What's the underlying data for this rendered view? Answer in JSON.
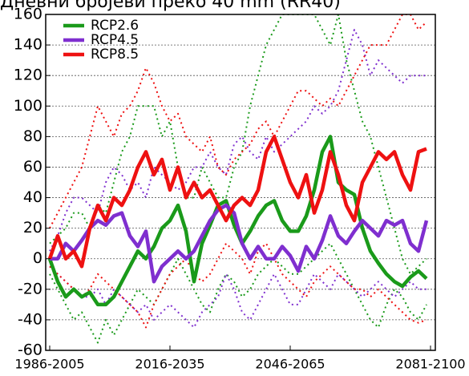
{
  "chart_data": {
    "type": "line",
    "title": "Дневни бројеви преко 40 mm (RR40)",
    "x": [
      1995.5,
      1997.5,
      1999.5,
      2001.5,
      2003.5,
      2005.5,
      2007.5,
      2009.5,
      2011.5,
      2013.5,
      2015.5,
      2017.5,
      2019.5,
      2021.5,
      2023.5,
      2025.5,
      2027.5,
      2029.5,
      2031.5,
      2033.5,
      2035.5,
      2037.5,
      2039.5,
      2041.5,
      2043.5,
      2045.5,
      2047.5,
      2049.5,
      2051.5,
      2053.5,
      2055.5,
      2057.5,
      2059.5,
      2061.5,
      2063.5,
      2065.5,
      2067.5,
      2069.5,
      2071.5,
      2073.5,
      2075.5,
      2077.5,
      2079.5,
      2081.5,
      2083.5,
      2085.5,
      2087.5,
      2089.5
    ],
    "xlim": [
      1994.5,
      2091.7
    ],
    "xticks": [
      {
        "value": 1995.5,
        "label": "1986-2005"
      },
      {
        "value": 2025.5,
        "label": "2016-2035"
      },
      {
        "value": 2055.5,
        "label": "2046-2065"
      },
      {
        "value": 2090.5,
        "label": "2081-2100"
      }
    ],
    "ylim": [
      -60,
      160
    ],
    "yticks": [
      -60,
      -40,
      -20,
      0,
      20,
      40,
      60,
      80,
      100,
      120,
      140,
      160
    ],
    "grid": true,
    "legend": "upper left",
    "series": [
      {
        "name": "RCP2.6",
        "color": "#1a9a1a",
        "values": [
          0,
          -15,
          -25,
          -20,
          -25,
          -22,
          -30,
          -30,
          -25,
          -15,
          -5,
          5,
          0,
          8,
          20,
          25,
          35,
          18,
          -15,
          10,
          22,
          35,
          38,
          22,
          10,
          18,
          28,
          35,
          38,
          25,
          18,
          18,
          28,
          45,
          70,
          80,
          50,
          45,
          42,
          20,
          5,
          -3,
          -10,
          -15,
          -18,
          -12,
          -8,
          -13
        ],
        "upper": [
          10,
          15,
          20,
          30,
          30,
          20,
          35,
          30,
          50,
          70,
          80,
          100,
          100,
          100,
          80,
          90,
          60,
          40,
          40,
          60,
          50,
          40,
          40,
          60,
          70,
          100,
          120,
          140,
          150,
          160,
          160,
          160,
          160,
          160,
          150,
          140,
          160,
          130,
          110,
          90,
          80,
          60,
          40,
          20,
          0,
          -10,
          -5,
          0
        ],
        "lower": [
          -10,
          -20,
          -30,
          -40,
          -35,
          -45,
          -55,
          -40,
          -50,
          -40,
          -30,
          -20,
          -25,
          -30,
          -20,
          -10,
          0,
          -10,
          -20,
          -30,
          -35,
          -20,
          -10,
          -15,
          -25,
          -20,
          -10,
          -5,
          0,
          -5,
          -10,
          -10,
          -5,
          0,
          5,
          10,
          0,
          -10,
          -20,
          -30,
          -40,
          -45,
          -30,
          -20,
          -25,
          -35,
          -40,
          -30
        ]
      },
      {
        "name": "RCP4.5",
        "color": "#7f2fcf",
        "values": [
          0,
          0,
          10,
          5,
          12,
          20,
          25,
          22,
          28,
          30,
          15,
          8,
          18,
          -15,
          -5,
          0,
          5,
          0,
          5,
          15,
          25,
          32,
          35,
          30,
          10,
          0,
          8,
          0,
          0,
          8,
          2,
          -8,
          8,
          0,
          12,
          28,
          15,
          10,
          18,
          25,
          20,
          15,
          25,
          22,
          25,
          10,
          5,
          25
        ],
        "upper": [
          5,
          15,
          30,
          40,
          40,
          35,
          30,
          50,
          60,
          55,
          45,
          50,
          40,
          60,
          55,
          50,
          45,
          50,
          60,
          60,
          70,
          60,
          55,
          75,
          80,
          70,
          65,
          80,
          70,
          75,
          80,
          85,
          90,
          100,
          95,
          100,
          110,
          130,
          150,
          140,
          120,
          130,
          125,
          120,
          115,
          120,
          120,
          120
        ],
        "lower": [
          -5,
          -10,
          -15,
          -20,
          -25,
          -25,
          -20,
          -30,
          -20,
          -25,
          -30,
          -35,
          -30,
          -40,
          -35,
          -30,
          -35,
          -40,
          -45,
          -35,
          -30,
          -25,
          -10,
          -20,
          -35,
          -40,
          -30,
          -20,
          -10,
          -20,
          -30,
          -30,
          -20,
          -10,
          -15,
          -20,
          -10,
          -15,
          -20,
          -25,
          -20,
          -15,
          -20,
          -25,
          -20,
          -15,
          -20,
          -20
        ]
      },
      {
        "name": "RCP8.5",
        "color": "#ee1111",
        "values": [
          0,
          15,
          0,
          5,
          -5,
          20,
          35,
          25,
          40,
          35,
          45,
          60,
          70,
          55,
          65,
          45,
          60,
          40,
          50,
          40,
          45,
          35,
          25,
          35,
          40,
          35,
          45,
          70,
          80,
          65,
          50,
          40,
          55,
          30,
          45,
          70,
          55,
          35,
          25,
          50,
          60,
          70,
          65,
          70,
          55,
          45,
          70,
          72
        ],
        "upper": [
          20,
          30,
          40,
          50,
          60,
          80,
          100,
          90,
          80,
          95,
          100,
          110,
          125,
          115,
          100,
          90,
          95,
          80,
          75,
          70,
          80,
          60,
          55,
          65,
          70,
          75,
          85,
          90,
          80,
          90,
          100,
          110,
          110,
          105,
          100,
          105,
          100,
          110,
          120,
          130,
          140,
          140,
          140,
          150,
          160,
          160,
          150,
          155
        ],
        "lower": [
          -5,
          -10,
          -15,
          -20,
          -25,
          -20,
          -10,
          -15,
          -20,
          -25,
          -30,
          -35,
          -45,
          -30,
          -20,
          -10,
          -5,
          0,
          -10,
          -15,
          -10,
          0,
          10,
          5,
          0,
          -10,
          5,
          10,
          0,
          -10,
          -15,
          -20,
          -25,
          -15,
          -10,
          -5,
          -10,
          -15,
          -20,
          -20,
          -25,
          -20,
          -25,
          -30,
          -35,
          -40,
          -42,
          -40
        ]
      }
    ]
  }
}
